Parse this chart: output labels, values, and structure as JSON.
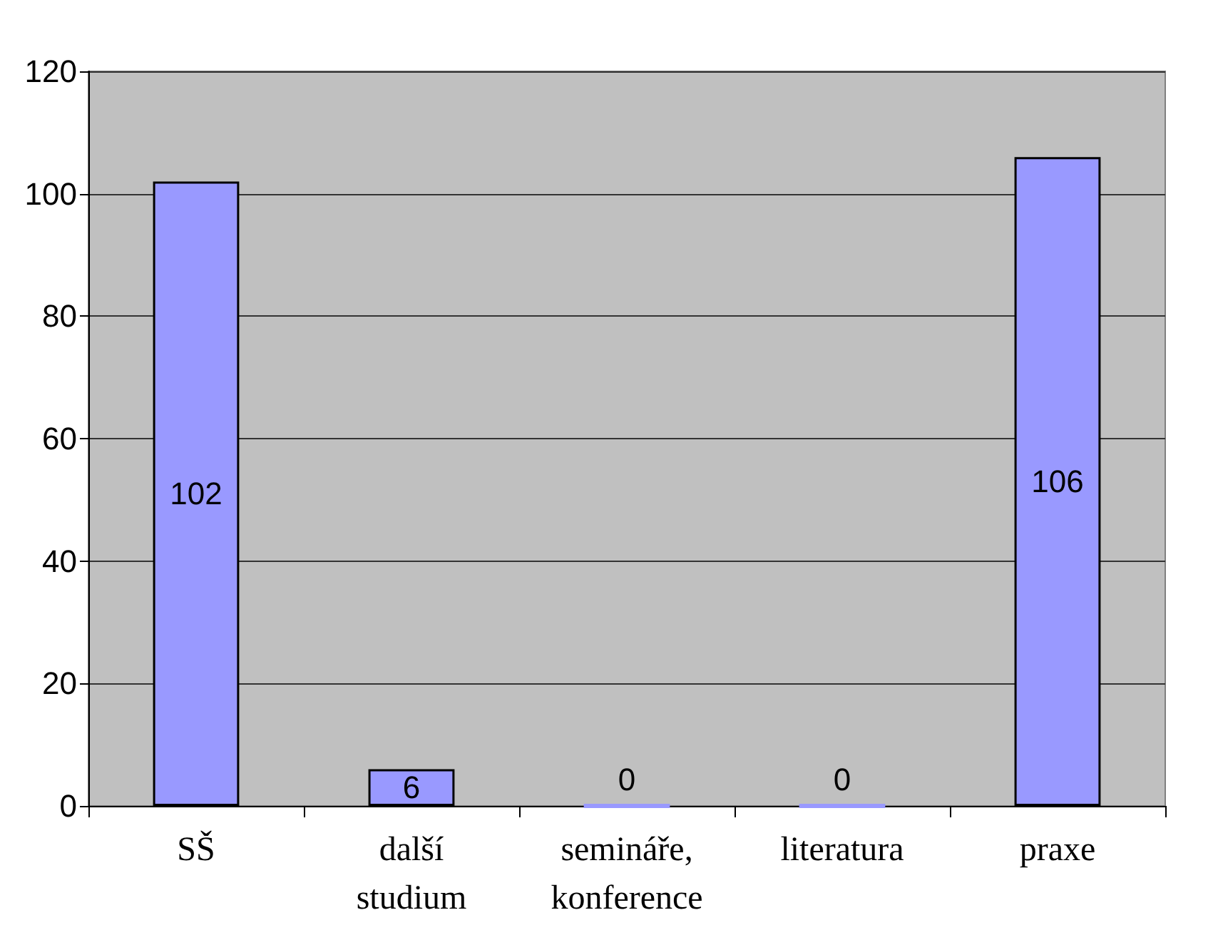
{
  "chart_data": {
    "type": "bar",
    "categories": [
      "SŠ",
      "další studium",
      "semináře, konference",
      "literatura",
      "praxe"
    ],
    "values": [
      102,
      6,
      0,
      0,
      106
    ],
    "color": "#9999ff",
    "ylim": [
      0,
      120
    ],
    "yticks": [
      0,
      20,
      40,
      60,
      80,
      100,
      120
    ],
    "grid": "y",
    "data_labels": true
  }
}
